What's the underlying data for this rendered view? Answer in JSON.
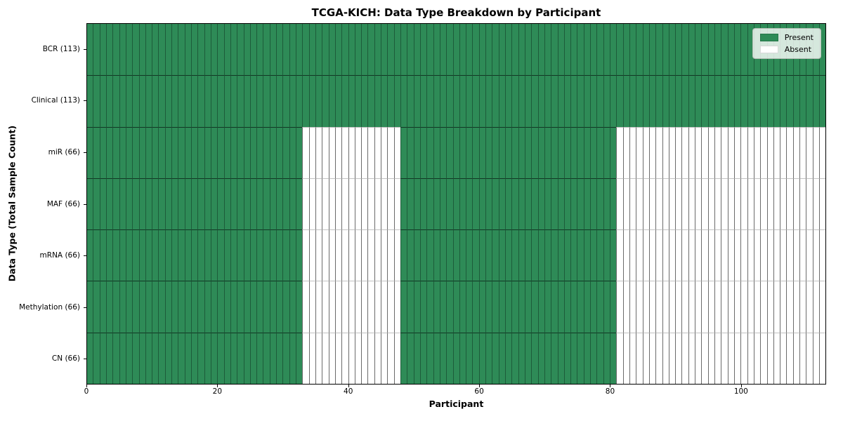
{
  "chart_data": {
    "type": "heatmap",
    "title": "TCGA-KICH: Data Type Breakdown by Participant",
    "xlabel": "Participant",
    "ylabel": "Data Type (Total Sample Count)",
    "n_participants": 113,
    "xlim": [
      0,
      113
    ],
    "x_ticks": [
      "0",
      "20",
      "40",
      "60",
      "80",
      "100"
    ],
    "x_tick_values": [
      0,
      20,
      40,
      60,
      80,
      100
    ],
    "grid": false,
    "legend_position": "upper right",
    "legend": [
      {
        "label": "Present",
        "state": "present",
        "color": "#2e8b57"
      },
      {
        "label": "Absent",
        "state": "absent",
        "color": "#ffffff"
      }
    ],
    "colors": {
      "present": "#2e8b57",
      "absent": "#ffffff",
      "present_edge_v": "#1d5c3a",
      "present_edge_h": "#123724",
      "absent_edge_v": "#6b6b6b",
      "absent_edge_h": "#c2c2c2"
    },
    "rows": [
      {
        "label": "BCR (113)",
        "data_type": "BCR",
        "total_sample_count": 113,
        "segments": [
          {
            "start": 0,
            "end": 113,
            "state": "present"
          }
        ]
      },
      {
        "label": "Clinical (113)",
        "data_type": "Clinical",
        "total_sample_count": 113,
        "segments": [
          {
            "start": 0,
            "end": 113,
            "state": "present"
          }
        ]
      },
      {
        "label": "miR (66)",
        "data_type": "miR",
        "total_sample_count": 66,
        "segments": [
          {
            "start": 0,
            "end": 33,
            "state": "present"
          },
          {
            "start": 33,
            "end": 48,
            "state": "absent"
          },
          {
            "start": 48,
            "end": 81,
            "state": "present"
          },
          {
            "start": 81,
            "end": 113,
            "state": "absent"
          }
        ]
      },
      {
        "label": "MAF (66)",
        "data_type": "MAF",
        "total_sample_count": 66,
        "segments": [
          {
            "start": 0,
            "end": 33,
            "state": "present"
          },
          {
            "start": 33,
            "end": 48,
            "state": "absent"
          },
          {
            "start": 48,
            "end": 81,
            "state": "present"
          },
          {
            "start": 81,
            "end": 113,
            "state": "absent"
          }
        ]
      },
      {
        "label": "mRNA (66)",
        "data_type": "mRNA",
        "total_sample_count": 66,
        "segments": [
          {
            "start": 0,
            "end": 33,
            "state": "present"
          },
          {
            "start": 33,
            "end": 48,
            "state": "absent"
          },
          {
            "start": 48,
            "end": 81,
            "state": "present"
          },
          {
            "start": 81,
            "end": 113,
            "state": "absent"
          }
        ]
      },
      {
        "label": "Methylation (66)",
        "data_type": "Methylation",
        "total_sample_count": 66,
        "segments": [
          {
            "start": 0,
            "end": 33,
            "state": "present"
          },
          {
            "start": 33,
            "end": 48,
            "state": "absent"
          },
          {
            "start": 48,
            "end": 81,
            "state": "present"
          },
          {
            "start": 81,
            "end": 113,
            "state": "absent"
          }
        ]
      },
      {
        "label": "CN (66)",
        "data_type": "CN",
        "total_sample_count": 66,
        "segments": [
          {
            "start": 0,
            "end": 33,
            "state": "present"
          },
          {
            "start": 33,
            "end": 48,
            "state": "absent"
          },
          {
            "start": 48,
            "end": 81,
            "state": "present"
          },
          {
            "start": 81,
            "end": 113,
            "state": "absent"
          }
        ]
      }
    ]
  }
}
